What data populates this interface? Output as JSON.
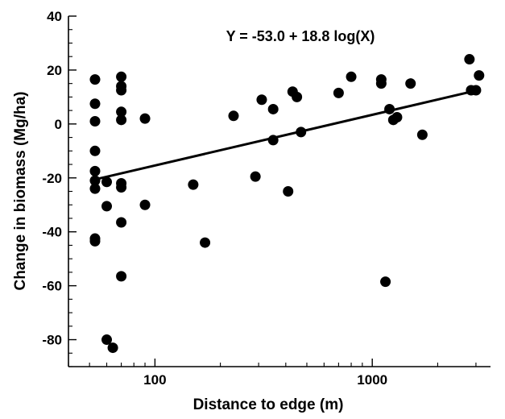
{
  "chart_data": {
    "type": "scatter",
    "title": "",
    "annotation": "Y = -53.0 + 18.8 log(X)",
    "xlabel": "Distance to edge (m)",
    "ylabel": "Change in  biomass (Mg/ha)",
    "x_scale": "log",
    "xlim": [
      40,
      3500
    ],
    "ylim": [
      -90,
      40
    ],
    "x_ticks": [
      {
        "value": 100,
        "label": "100"
      },
      {
        "value": 1000,
        "label": "1000"
      }
    ],
    "y_ticks": [
      {
        "value": 40,
        "label": "40"
      },
      {
        "value": 20,
        "label": "20"
      },
      {
        "value": 0,
        "label": "0"
      },
      {
        "value": -20,
        "label": "-20"
      },
      {
        "value": -40,
        "label": "-40"
      },
      {
        "value": -60,
        "label": "-60"
      },
      {
        "value": -80,
        "label": "-80"
      }
    ],
    "grid": false,
    "marker_color": "#000000",
    "fit_line": {
      "intercept": -53.0,
      "slope": 18.8,
      "x_range": [
        53,
        2800
      ],
      "color": "#000000"
    },
    "points": [
      {
        "x": 53,
        "y": 16.5
      },
      {
        "x": 53,
        "y": 7.5
      },
      {
        "x": 53,
        "y": 1
      },
      {
        "x": 53,
        "y": -10
      },
      {
        "x": 53,
        "y": -17.5
      },
      {
        "x": 53,
        "y": -21
      },
      {
        "x": 53,
        "y": -24
      },
      {
        "x": 53,
        "y": -42.5
      },
      {
        "x": 53,
        "y": -43.5
      },
      {
        "x": 60,
        "y": -21.5
      },
      {
        "x": 60,
        "y": -30.5
      },
      {
        "x": 60,
        "y": -80
      },
      {
        "x": 64,
        "y": -83
      },
      {
        "x": 70,
        "y": 17.5
      },
      {
        "x": 70,
        "y": 14
      },
      {
        "x": 70,
        "y": 12.5
      },
      {
        "x": 70,
        "y": 4.5
      },
      {
        "x": 70,
        "y": 1.5
      },
      {
        "x": 70,
        "y": -22
      },
      {
        "x": 70,
        "y": -23.5
      },
      {
        "x": 70,
        "y": -36.5
      },
      {
        "x": 70,
        "y": -56.5
      },
      {
        "x": 90,
        "y": 2
      },
      {
        "x": 90,
        "y": -30
      },
      {
        "x": 150,
        "y": -22.5
      },
      {
        "x": 170,
        "y": -44
      },
      {
        "x": 230,
        "y": 3
      },
      {
        "x": 290,
        "y": -19.5
      },
      {
        "x": 310,
        "y": 9
      },
      {
        "x": 350,
        "y": 5.5
      },
      {
        "x": 350,
        "y": -6
      },
      {
        "x": 410,
        "y": -25
      },
      {
        "x": 430,
        "y": 12
      },
      {
        "x": 450,
        "y": 10
      },
      {
        "x": 470,
        "y": -3
      },
      {
        "x": 700,
        "y": 11.5
      },
      {
        "x": 800,
        "y": 17.5
      },
      {
        "x": 1100,
        "y": 16.5
      },
      {
        "x": 1100,
        "y": 15
      },
      {
        "x": 1150,
        "y": -58.5
      },
      {
        "x": 1200,
        "y": 5.5
      },
      {
        "x": 1250,
        "y": 1.5
      },
      {
        "x": 1300,
        "y": 2.5
      },
      {
        "x": 1500,
        "y": 15
      },
      {
        "x": 1700,
        "y": -4
      },
      {
        "x": 2800,
        "y": 24
      },
      {
        "x": 2850,
        "y": 12.5
      },
      {
        "x": 3000,
        "y": 12.5
      },
      {
        "x": 3100,
        "y": 18
      }
    ]
  }
}
